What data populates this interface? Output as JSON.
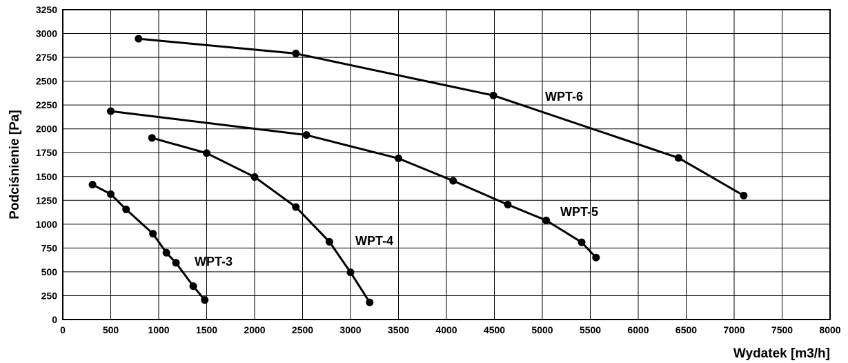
{
  "chart_data": {
    "type": "line",
    "title": "",
    "xlabel": "Wydatek [m3/h]",
    "ylabel": "Podciśnienie [Pa]",
    "xlim": [
      0,
      8000
    ],
    "ylim": [
      0,
      3250
    ],
    "x_ticks": [
      0,
      500,
      1000,
      1500,
      2000,
      2500,
      3000,
      3500,
      4000,
      4500,
      5000,
      5500,
      6000,
      6500,
      7000,
      7500,
      8000
    ],
    "y_ticks": [
      0,
      250,
      500,
      750,
      1000,
      1250,
      1500,
      1750,
      2000,
      2250,
      2500,
      2750,
      3000,
      3250
    ],
    "grid": true,
    "legend": "none (series labelled inline)",
    "line_color": "#000000",
    "marker": "filled circle",
    "series": [
      {
        "name": "WPT-3",
        "points": [
          [
            310,
            1415
          ],
          [
            500,
            1315
          ],
          [
            660,
            1155
          ],
          [
            940,
            900
          ],
          [
            1080,
            700
          ],
          [
            1180,
            595
          ],
          [
            1360,
            350
          ],
          [
            1480,
            205
          ]
        ]
      },
      {
        "name": "WPT-4",
        "points": [
          [
            930,
            1905
          ],
          [
            1500,
            1745
          ],
          [
            2000,
            1495
          ],
          [
            2430,
            1180
          ],
          [
            2780,
            815
          ],
          [
            3000,
            495
          ],
          [
            3200,
            180
          ]
        ]
      },
      {
        "name": "WPT-5",
        "points": [
          [
            500,
            2185
          ],
          [
            2540,
            1935
          ],
          [
            3500,
            1690
          ],
          [
            4070,
            1455
          ],
          [
            4640,
            1205
          ],
          [
            5040,
            1040
          ],
          [
            5410,
            810
          ],
          [
            5560,
            650
          ]
        ]
      },
      {
        "name": "WPT-6",
        "points": [
          [
            790,
            2945
          ],
          [
            2430,
            2790
          ],
          [
            4490,
            2350
          ],
          [
            6420,
            1695
          ],
          [
            7100,
            1300
          ]
        ]
      }
    ]
  }
}
